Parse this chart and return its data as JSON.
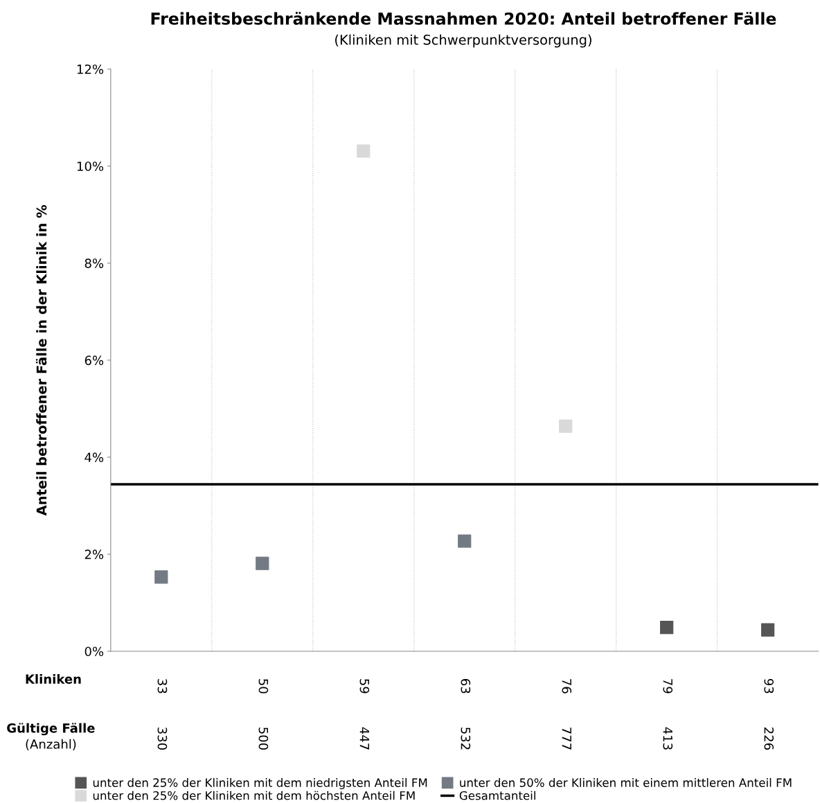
{
  "chart_data": {
    "type": "scatter",
    "title": "Freiheitsbeschränkende Massnahmen 2020: Anteil betroffener Fälle",
    "subtitle": "(Kliniken mit Schwerpunktversorgung)",
    "ylabel": "Anteil betroffener Fälle in der Klinik in %",
    "categories": [
      "33",
      "50",
      "59",
      "63",
      "76",
      "79",
      "93"
    ],
    "series": [
      {
        "name": "unter den 25% der Kliniken mit dem niedrigsten Anteil FM",
        "color": "#555555",
        "values": [
          null,
          null,
          null,
          null,
          null,
          0.49,
          0.44
        ]
      },
      {
        "name": "unter den 25% der Kliniken mit dem höchsten Anteil FM",
        "color": "#d9d9d9",
        "values": [
          null,
          null,
          10.31,
          null,
          4.64,
          null,
          null
        ]
      },
      {
        "name": "unter den 50% der Kliniken mit einem mittleren Anteil FM",
        "color": "#737a84",
        "values": [
          1.53,
          1.81,
          null,
          2.27,
          null,
          null,
          null
        ]
      }
    ],
    "ref_lines": [
      {
        "axis": "y",
        "value": 3.44,
        "label": "Gesamtanteil",
        "color": "#000000"
      }
    ],
    "ylim": [
      0,
      12
    ],
    "yticks": [
      {
        "value": 0,
        "label": "0%"
      },
      {
        "value": 2,
        "label": "2%"
      },
      {
        "value": 4,
        "label": "4%"
      },
      {
        "value": 6,
        "label": "6%"
      },
      {
        "value": 8,
        "label": "8%"
      },
      {
        "value": 10,
        "label": "10%"
      },
      {
        "value": 12,
        "label": "12%"
      }
    ],
    "marker": "square",
    "grid": "x",
    "legend": "bottom",
    "annotations": [
      "Kliniken",
      "Gültige Fälle",
      "(Anzahl)",
      "330",
      "500",
      "447",
      "532",
      "777",
      "413",
      "226"
    ]
  }
}
